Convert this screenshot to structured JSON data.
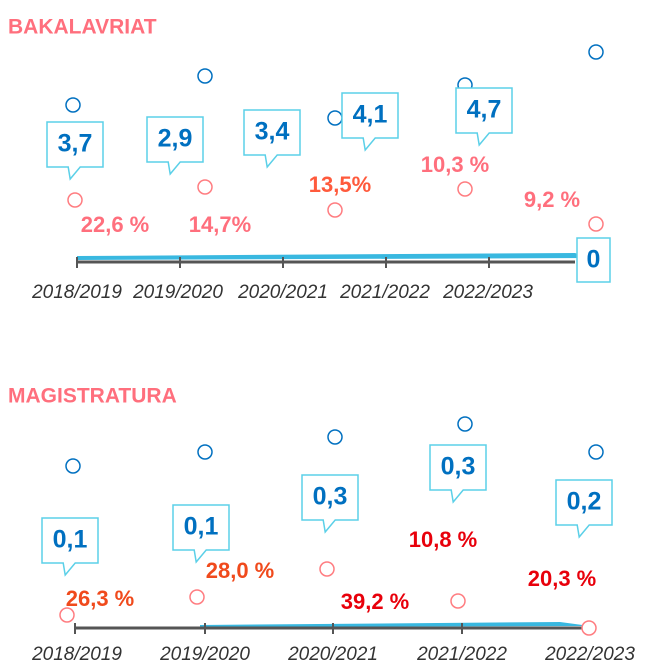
{
  "chart_data": [
    {
      "type": "callout",
      "title": "BAKALAVRIAT",
      "categories": [
        "2018/2019",
        "2019/2020",
        "2020/2021",
        "2021/2022",
        "2022/2023"
      ],
      "series": [
        {
          "color": "#0070c0",
          "values": [
            3.7,
            2.9,
            3.4,
            4.1,
            4.7
          ],
          "value_labels": [
            "3,7",
            "2,9",
            "3,4",
            "4,1",
            "4,7"
          ]
        },
        {
          "color": "#ff7c80",
          "values": [
            22.6,
            14.7,
            13.5,
            10.3,
            9.2
          ],
          "value_labels": [
            "22,6 %",
            "14,7%",
            "13,5%",
            "10,3 %",
            "9,2 %"
          ],
          "label_colors": [
            "#ff6f7d",
            "#ff6f7d",
            "#ff5a3c",
            "#ff6f7d",
            "#ff6f7d"
          ]
        }
      ],
      "end_value": 0
    },
    {
      "type": "callout",
      "title": "MAGISTRATURA",
      "categories": [
        "2018/2019",
        "2019/2020",
        "2020/2021",
        "2021/2022",
        "2022/2023"
      ],
      "series": [
        {
          "color": "#0070c0",
          "values": [
            0.1,
            0.1,
            0.3,
            0.3,
            0.2
          ],
          "value_labels": [
            "0,1",
            "0,1",
            "0,3",
            "0,3",
            "0,2"
          ]
        },
        {
          "color": "#ff7c80",
          "values": [
            26.3,
            28.0,
            39.2,
            10.8,
            20.3
          ],
          "value_labels": [
            "26,3 %",
            "28,0 %",
            "39,2 %",
            "10,8 %",
            "20,3 %"
          ],
          "label_colors": [
            "#f04a1c",
            "#f04a1c",
            "#e8000b",
            "#e8000b",
            "#e8000b"
          ]
        }
      ]
    }
  ]
}
